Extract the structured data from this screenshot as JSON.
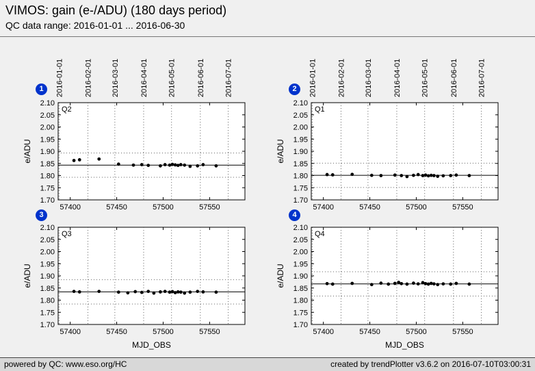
{
  "header": {
    "title": "VIMOS: gain (e-/ADU) (180 days period)",
    "subtitle": "QC data range: 2016-01-01 ... 2016-06-30"
  },
  "footer": {
    "left": "powered by QC: www.eso.org/HC",
    "right": "created by trendPlotter v3.6.2 on 2016-07-10T03:00:31"
  },
  "colors": {
    "badge": "#0033cc",
    "point": "#000000",
    "grid": "#666666",
    "background": "#f0f0f0"
  },
  "chart_data": {
    "type": "scatter",
    "xlabel": "MJD_OBS",
    "ylabel": "e/ADU",
    "xlim": [
      57387,
      57588
    ],
    "ylim": [
      1.7,
      2.1
    ],
    "xticks": [
      57400,
      57450,
      57500,
      57550
    ],
    "yticks": [
      1.7,
      1.75,
      1.8,
      1.85,
      1.9,
      1.95,
      2.0,
      2.05,
      2.1
    ],
    "grid": "dotted",
    "month_gridlines": [
      {
        "mjd": 57388,
        "label": "2016-01-01"
      },
      {
        "mjd": 57419,
        "label": "2016-02-01"
      },
      {
        "mjd": 57448,
        "label": "2016-03-01"
      },
      {
        "mjd": 57479,
        "label": "2016-04-01"
      },
      {
        "mjd": 57509,
        "label": "2016-05-01"
      },
      {
        "mjd": 57540,
        "label": "2016-06-01"
      },
      {
        "mjd": 57570,
        "label": "2016-07-01"
      }
    ],
    "plots": [
      {
        "badge": "1",
        "label": "Q2",
        "mean": 1.843,
        "thresholds": [
          1.893,
          1.793
        ],
        "x": [
          57404,
          57410,
          57431,
          57452,
          57468,
          57477,
          57484,
          57497,
          57502,
          57507,
          57510,
          57513,
          57516,
          57519,
          57523,
          57529,
          57537,
          57543,
          57557
        ],
        "y": [
          1.862,
          1.865,
          1.868,
          1.847,
          1.843,
          1.845,
          1.842,
          1.84,
          1.845,
          1.843,
          1.846,
          1.844,
          1.842,
          1.845,
          1.843,
          1.838,
          1.84,
          1.845,
          1.84
        ]
      },
      {
        "badge": "2",
        "label": "Q1",
        "mean": 1.801,
        "thresholds": [
          1.851,
          1.751
        ],
        "x": [
          57404,
          57410,
          57431,
          57452,
          57462,
          57477,
          57484,
          57490,
          57497,
          57502,
          57507,
          57510,
          57513,
          57516,
          57519,
          57523,
          57529,
          57537,
          57543,
          57557
        ],
        "y": [
          1.804,
          1.803,
          1.805,
          1.801,
          1.8,
          1.802,
          1.8,
          1.796,
          1.801,
          1.804,
          1.8,
          1.802,
          1.799,
          1.801,
          1.8,
          1.797,
          1.799,
          1.8,
          1.802,
          1.8
        ]
      },
      {
        "badge": "3",
        "label": "Q3",
        "mean": 1.834,
        "thresholds": [
          1.884,
          1.784
        ],
        "x": [
          57404,
          57410,
          57431,
          57452,
          57462,
          57470,
          57477,
          57484,
          57490,
          57497,
          57502,
          57507,
          57510,
          57513,
          57516,
          57519,
          57523,
          57529,
          57537,
          57543,
          57557
        ],
        "y": [
          1.836,
          1.834,
          1.836,
          1.833,
          1.83,
          1.835,
          1.832,
          1.836,
          1.829,
          1.834,
          1.836,
          1.833,
          1.835,
          1.831,
          1.834,
          1.833,
          1.829,
          1.833,
          1.836,
          1.834,
          1.833
        ]
      },
      {
        "badge": "4",
        "label": "Q4",
        "mean": 1.867,
        "thresholds": [
          1.917,
          1.817
        ],
        "x": [
          57404,
          57410,
          57431,
          57452,
          57462,
          57470,
          57477,
          57481,
          57484,
          57490,
          57497,
          57502,
          57507,
          57510,
          57513,
          57516,
          57519,
          57523,
          57529,
          57537,
          57543,
          57557
        ],
        "y": [
          1.868,
          1.866,
          1.869,
          1.864,
          1.87,
          1.866,
          1.869,
          1.873,
          1.868,
          1.866,
          1.87,
          1.867,
          1.872,
          1.868,
          1.866,
          1.869,
          1.867,
          1.864,
          1.867,
          1.866,
          1.869,
          1.866
        ]
      }
    ]
  }
}
